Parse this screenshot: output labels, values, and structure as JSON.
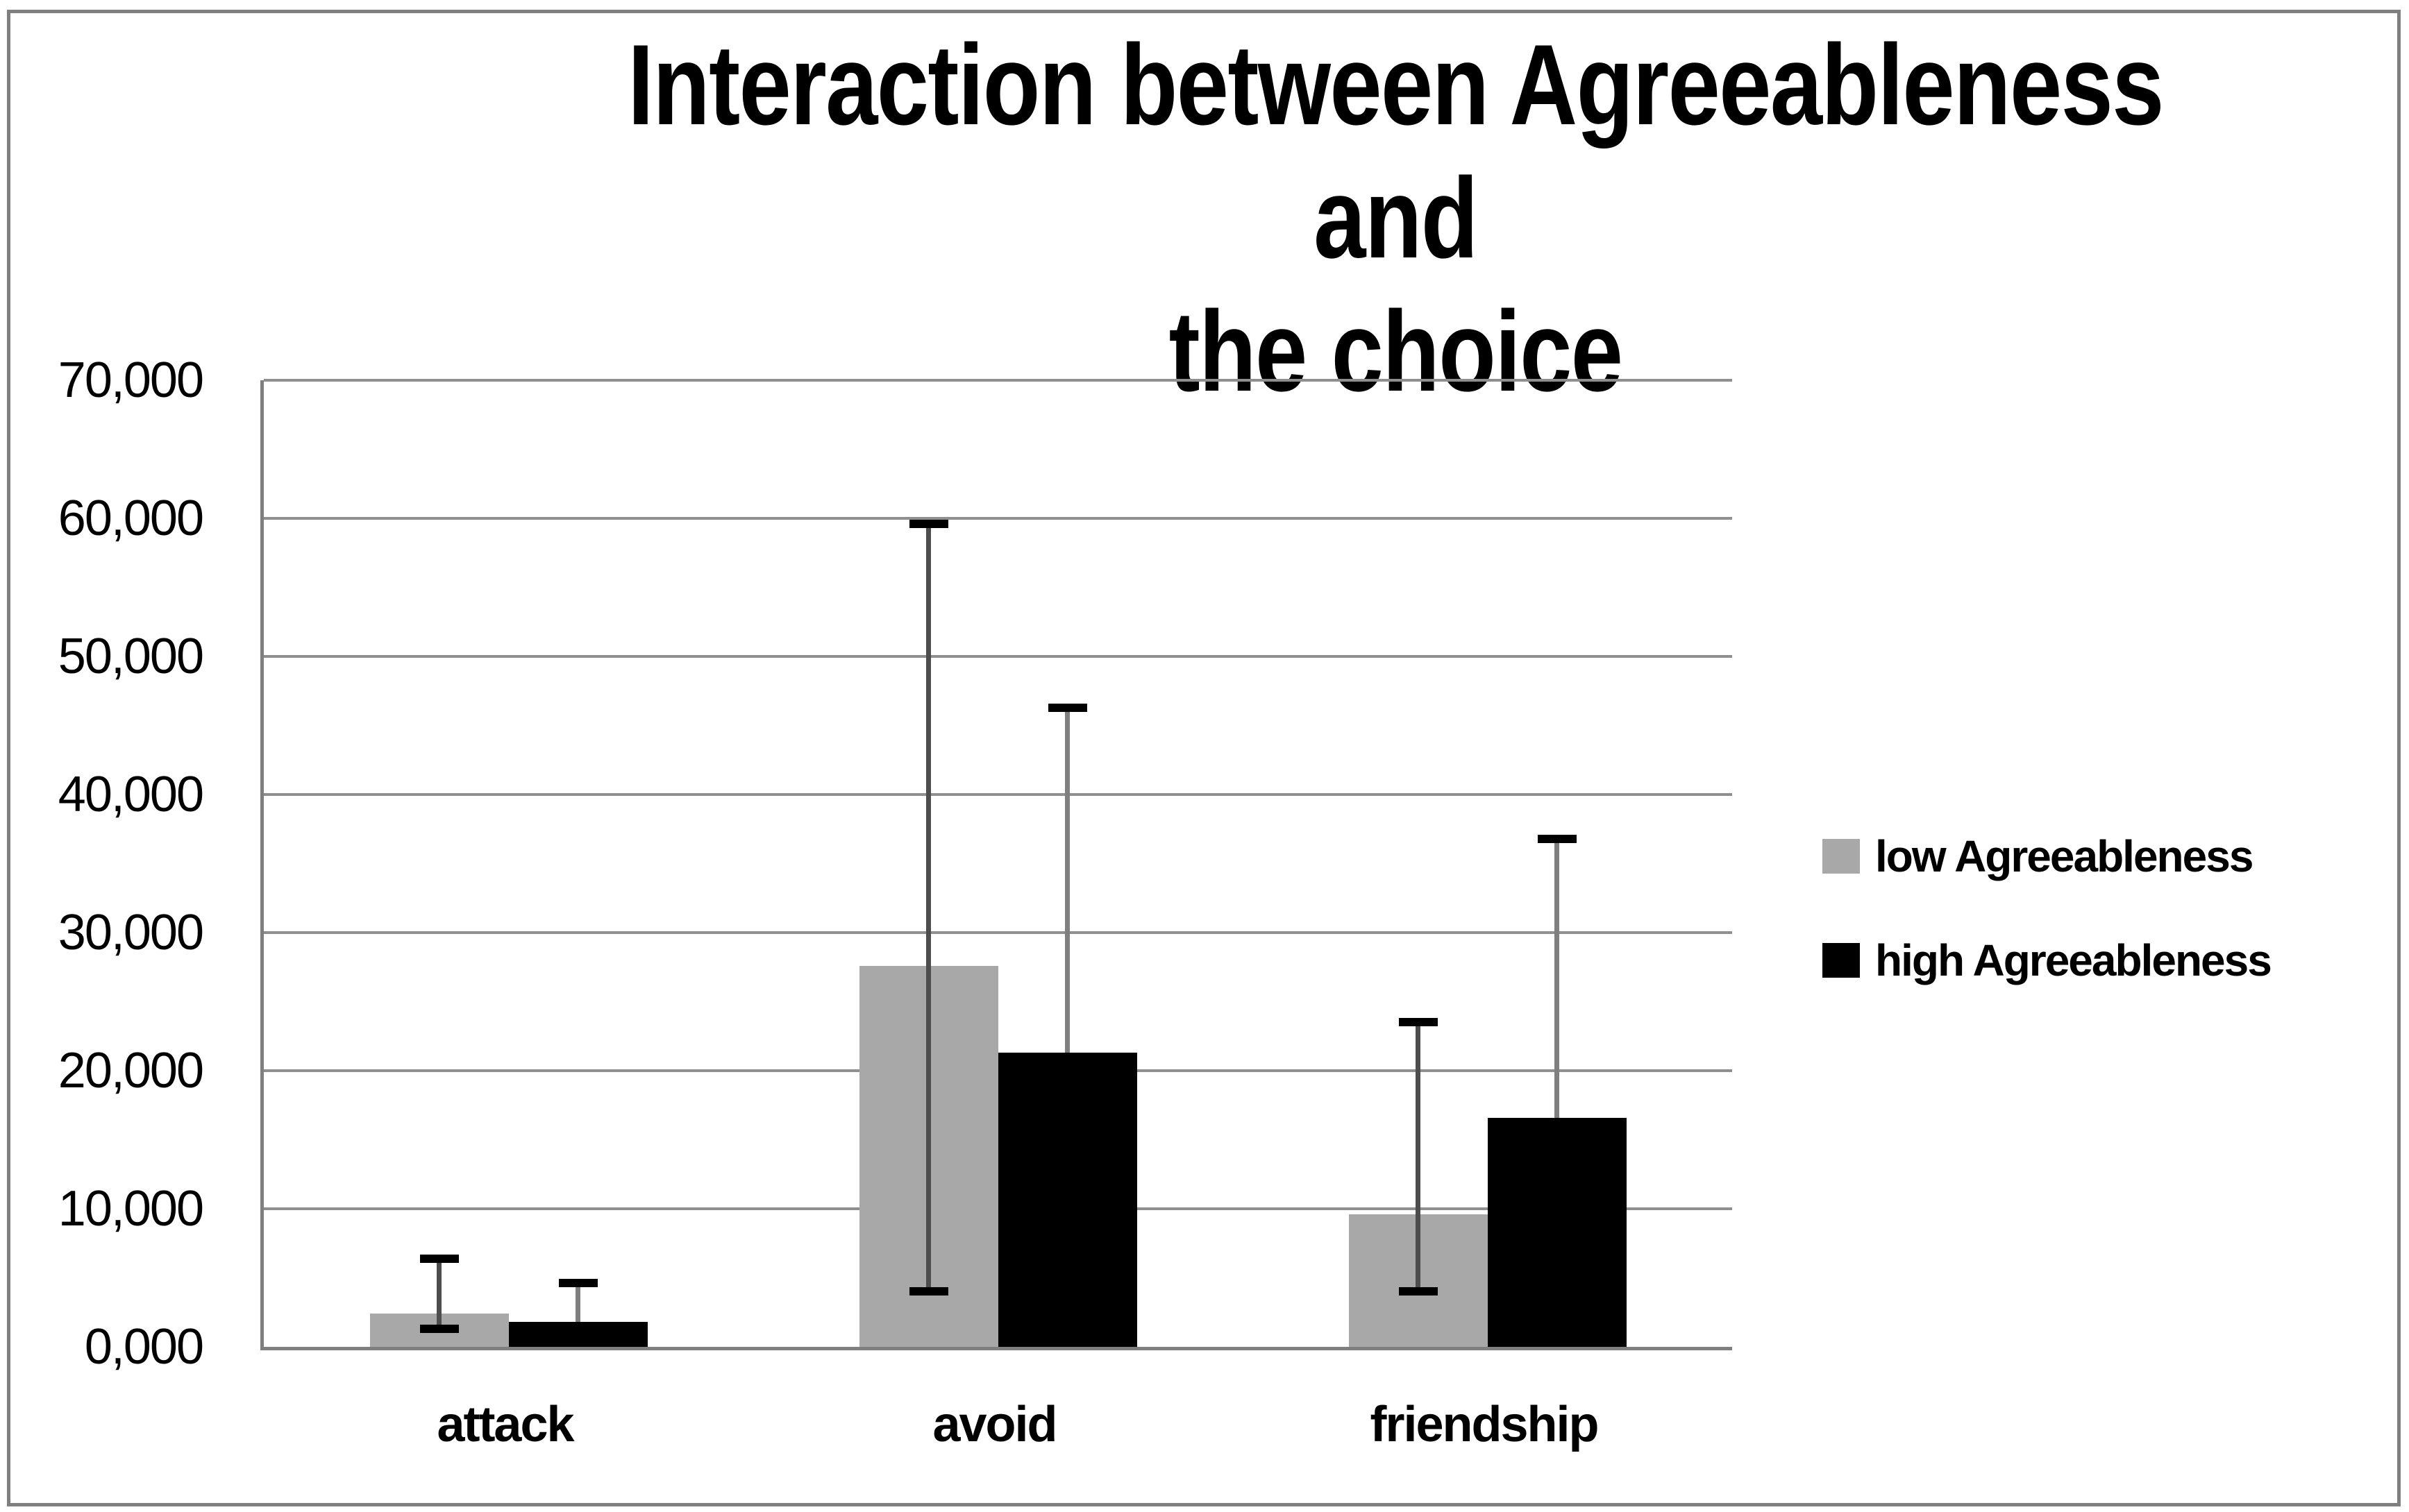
{
  "page": {
    "background": "#ffffff",
    "frame_border_color": "#7f7f7f",
    "gridline_color": "#8f8f8f",
    "axis_color": "#7f7f7f"
  },
  "title": {
    "line1": "Interaction between Agreeableness and",
    "line2": "the choice"
  },
  "y_axis": {
    "tick_labels": [
      "0,000",
      "10,000",
      "20,000",
      "30,000",
      "40,000",
      "50,000",
      "60,000",
      "70,000"
    ],
    "tick_step": 10000
  },
  "x_axis": {
    "categories": [
      "attack",
      "avoid",
      "friendship"
    ]
  },
  "legend": {
    "position": "right",
    "items": [
      {
        "label": "low Agreeableness",
        "color": "#a8a8a8"
      },
      {
        "label": "high Agreeableness",
        "color": "#000000"
      }
    ]
  },
  "chart_data": {
    "type": "bar",
    "title": "Interaction between Agreeableness and the choice",
    "categories": [
      "attack",
      "avoid",
      "friendship"
    ],
    "series": [
      {
        "name": "low Agreeableness",
        "color": "#a8a8a8",
        "error_color": "#4d4d4d",
        "values": [
          2400,
          27600,
          9600
        ],
        "error_low": [
          1300,
          4000,
          4000
        ],
        "error_high": [
          6400,
          59600,
          23500
        ]
      },
      {
        "name": "high Agreeableness",
        "color": "#000000",
        "error_color": "#7f7f7f",
        "values": [
          1800,
          21300,
          16600
        ],
        "error_low": [
          null,
          null,
          null
        ],
        "error_high": [
          4600,
          46300,
          36800
        ]
      }
    ],
    "ylim": [
      0,
      70000
    ],
    "grid": true,
    "legend_position": "right"
  }
}
